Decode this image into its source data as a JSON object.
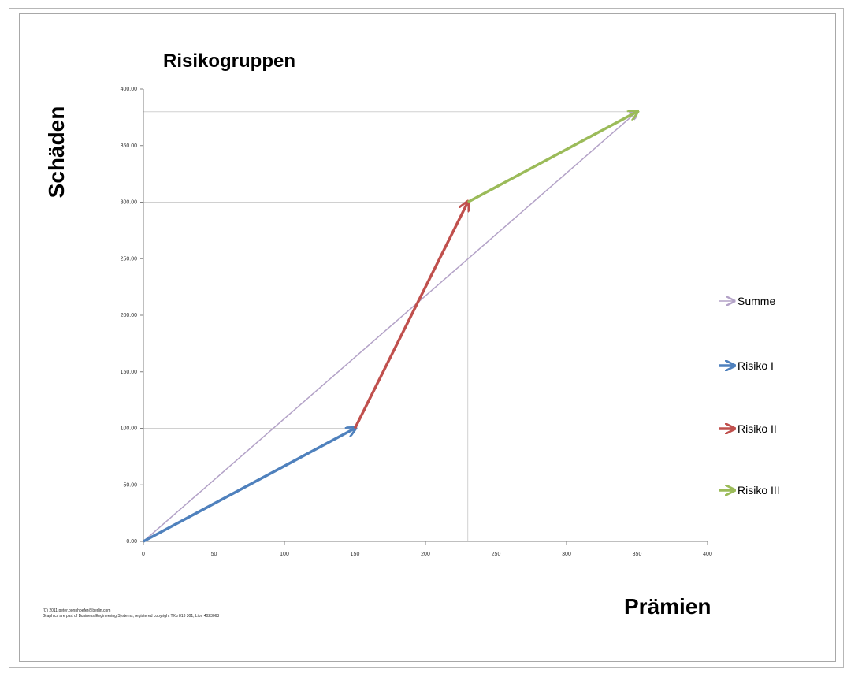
{
  "chart_data": {
    "type": "line",
    "title": "Risikogruppen",
    "xlabel": "Prämien",
    "ylabel": "Schäden",
    "xlim": [
      0,
      400
    ],
    "ylim": [
      0,
      400
    ],
    "x_ticks": [
      0,
      50,
      100,
      150,
      200,
      250,
      300,
      350,
      400
    ],
    "y_ticks": [
      0,
      50,
      100,
      150,
      200,
      250,
      300,
      350,
      400
    ],
    "x_tick_labels": [
      "0",
      "50",
      "100",
      "150",
      "200",
      "250",
      "300",
      "350",
      "400"
    ],
    "y_tick_labels": [
      "0.00",
      "50.00",
      "100.00",
      "150.00",
      "200.00",
      "250.00",
      "300.00",
      "350.00",
      "400.00"
    ],
    "grid": "guide lines at segment endpoints",
    "legend_position": "right",
    "series": [
      {
        "name": "Summe",
        "color": "#b3a2c7",
        "points": [
          [
            0,
            0
          ],
          [
            350,
            380
          ]
        ],
        "arrow": true
      },
      {
        "name": "Risiko I",
        "color": "#4f81bd",
        "points": [
          [
            0,
            0
          ],
          [
            150,
            100
          ]
        ],
        "arrow": true
      },
      {
        "name": "Risiko II",
        "color": "#c0504d",
        "points": [
          [
            150,
            100
          ],
          [
            230,
            300
          ]
        ],
        "arrow": true
      },
      {
        "name": "Risiko III",
        "color": "#9bbb59",
        "points": [
          [
            230,
            300
          ],
          [
            350,
            380
          ]
        ],
        "arrow": true
      }
    ]
  },
  "footer": {
    "line1": "(C) 2011 peter.bonnhoefer@berlin.com",
    "line2": "Graphics are part of Business Engineering Systems, registered copyright TXu 813 301, Libr. 4023063"
  }
}
